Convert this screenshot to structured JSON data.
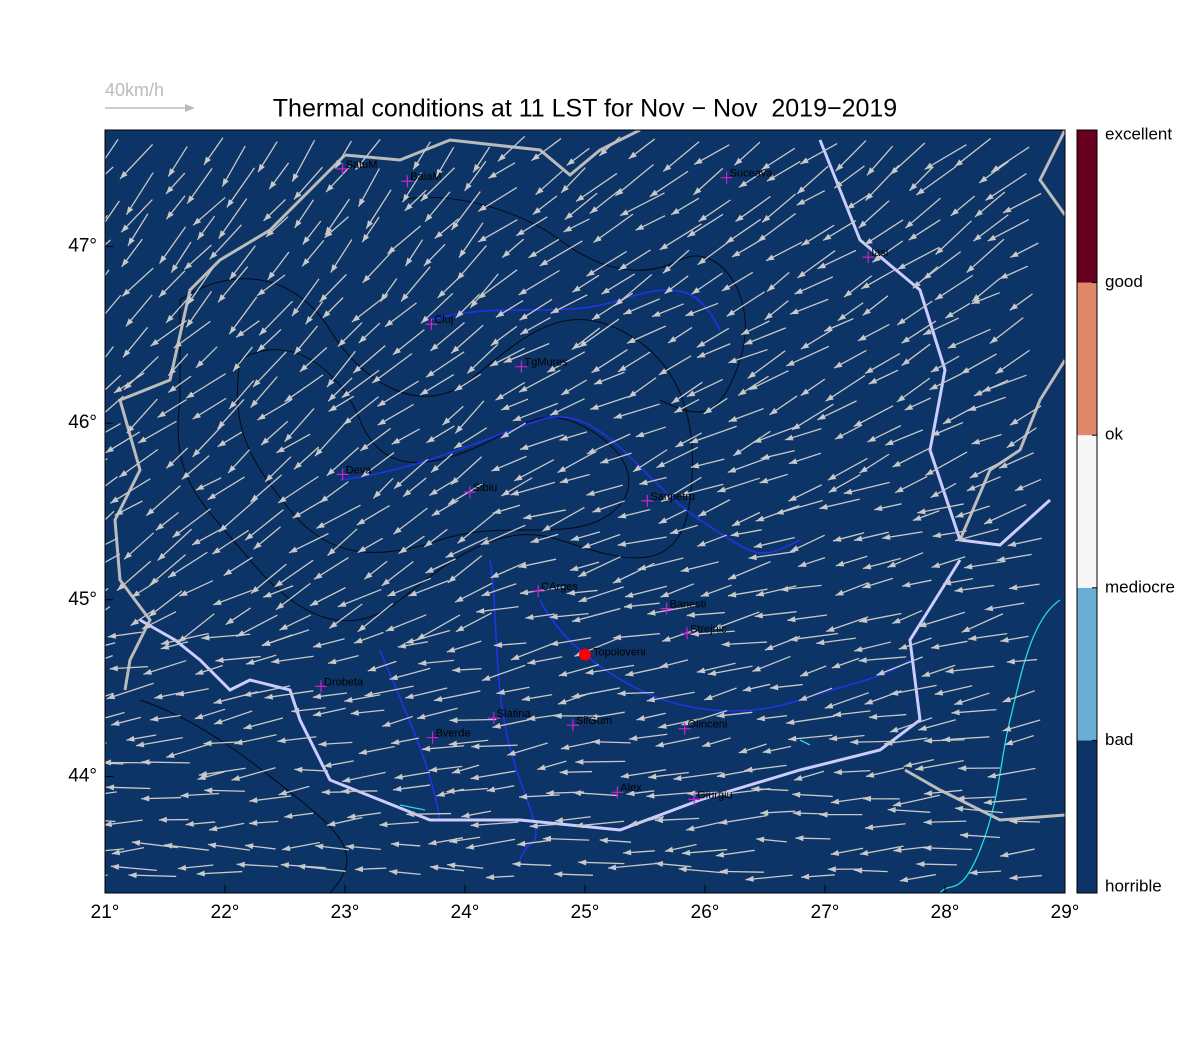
{
  "title": "Thermal conditions at 11 LST for Nov − Nov  2019−2019",
  "wind_scale": "40km/h",
  "map": {
    "xlim": [
      21,
      29
    ],
    "ylim": [
      43.34,
      47.66
    ],
    "xticks": [
      {
        "value": 21,
        "label": "21°"
      },
      {
        "value": 22,
        "label": "22°"
      },
      {
        "value": 23,
        "label": "23°"
      },
      {
        "value": 24,
        "label": "24°"
      },
      {
        "value": 25,
        "label": "25°"
      },
      {
        "value": 26,
        "label": "26°"
      },
      {
        "value": 27,
        "label": "27°"
      },
      {
        "value": 28,
        "label": "28°"
      },
      {
        "value": 29,
        "label": "29°"
      }
    ],
    "yticks": [
      {
        "value": 44,
        "label": "44°"
      },
      {
        "value": 45,
        "label": "45°"
      },
      {
        "value": 46,
        "label": "46°"
      },
      {
        "value": 47,
        "label": "47°"
      }
    ],
    "background": "#0c3466",
    "cities": [
      {
        "name": "SatuM",
        "lon": 22.98,
        "lat": 47.44
      },
      {
        "name": "BaiaM",
        "lon": 23.52,
        "lat": 47.37
      },
      {
        "name": "Suceava",
        "lon": 26.18,
        "lat": 47.39
      },
      {
        "name": "Iasi",
        "lon": 27.36,
        "lat": 46.94
      },
      {
        "name": "Cluj",
        "lon": 23.72,
        "lat": 46.56
      },
      {
        "name": "TgMures",
        "lon": 24.47,
        "lat": 46.32
      },
      {
        "name": "Deva",
        "lon": 22.98,
        "lat": 45.71
      },
      {
        "name": "Sibiu",
        "lon": 24.04,
        "lat": 45.61
      },
      {
        "name": "Sanpetru",
        "lon": 25.52,
        "lat": 45.56
      },
      {
        "name": "CArges",
        "lon": 24.61,
        "lat": 45.05
      },
      {
        "name": "Banesti",
        "lon": 25.68,
        "lat": 44.95
      },
      {
        "name": "Strejnic",
        "lon": 25.85,
        "lat": 44.81
      },
      {
        "name": "Drobeta",
        "lon": 22.8,
        "lat": 44.51
      },
      {
        "name": "Slatina",
        "lon": 24.24,
        "lat": 44.33
      },
      {
        "name": "SilGum",
        "lon": 24.9,
        "lat": 44.29
      },
      {
        "name": "Olinceni",
        "lon": 25.83,
        "lat": 44.27
      },
      {
        "name": "Bverde",
        "lon": 23.73,
        "lat": 44.22
      },
      {
        "name": "Alex",
        "lon": 25.27,
        "lat": 43.91
      },
      {
        "name": "Giurgiu",
        "lon": 25.91,
        "lat": 43.87
      }
    ],
    "site": {
      "name": "Topoloveni",
      "lon": 25.0,
      "lat": 44.69,
      "color": "#ff0000"
    }
  },
  "colorbar": {
    "labels": [
      "horrible",
      "bad",
      "mediocre",
      "ok",
      "good",
      "excellent"
    ],
    "colors": [
      "#0b3366",
      "#6aaed6",
      "#f7f7f7",
      "#e0876a",
      "#67001f"
    ]
  }
}
